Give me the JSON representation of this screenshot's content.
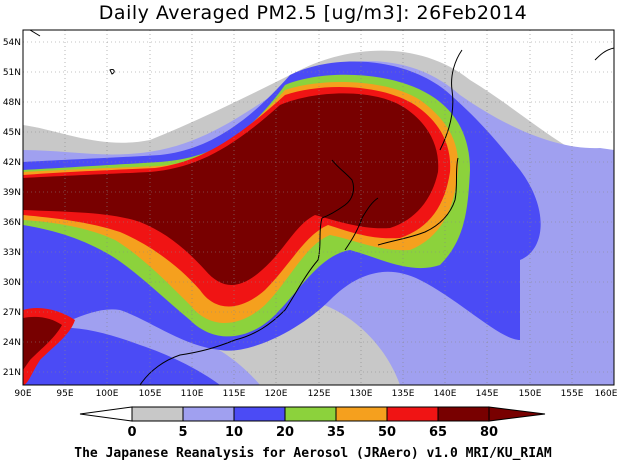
{
  "title": "Daily Averaged PM2.5 [ug/m3]: 26Feb2014",
  "footer": "The Japanese Reanalysis for Aerosol (JRAero) v1.0 MRI/KU_RIAM",
  "map": {
    "lon_labels": [
      "90E",
      "95E",
      "100E",
      "105E",
      "110E",
      "115E",
      "120E",
      "125E",
      "130E",
      "135E",
      "140E",
      "145E",
      "150E",
      "155E",
      "160E"
    ],
    "lat_labels": [
      "54N",
      "51N",
      "48N",
      "45N",
      "42N",
      "39N",
      "36N",
      "33N",
      "30N",
      "27N",
      "24N",
      "21N"
    ],
    "lon_range": [
      90,
      160
    ],
    "lat_range": [
      20,
      55
    ],
    "grid": true
  },
  "colorbar": {
    "levels": [
      "0",
      "5",
      "10",
      "20",
      "35",
      "50",
      "65",
      "80"
    ],
    "colors": [
      "#ffffff",
      "#c8c8c8",
      "#a0a0f0",
      "#4b4bf5",
      "#8cd23c",
      "#f5a01e",
      "#f01414",
      "#780000"
    ]
  }
}
